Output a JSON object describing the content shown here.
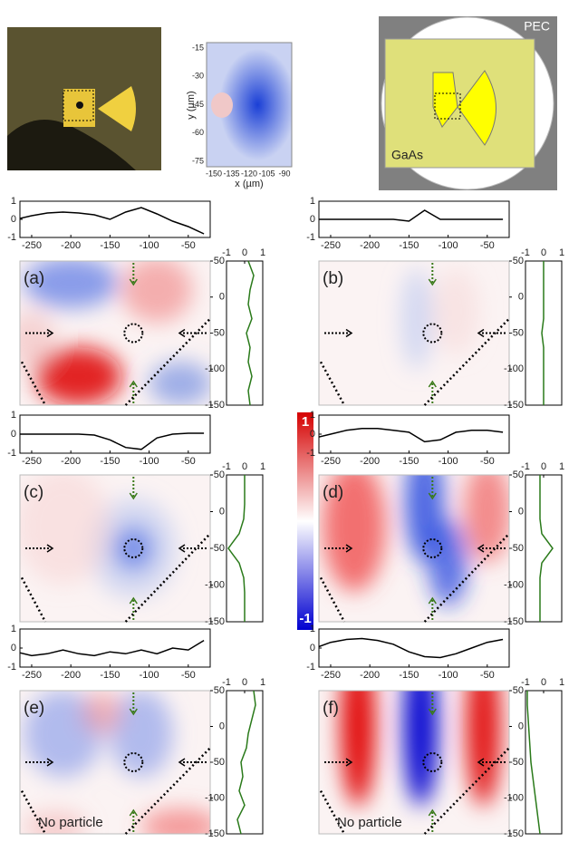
{
  "inset": {
    "ylabel": "y (µm)",
    "xlabel": "x (µm)",
    "yticks": [
      -15,
      -30,
      -45,
      -60,
      -75
    ],
    "xticks": [
      -150,
      -135,
      -120,
      -105,
      -90
    ]
  },
  "schematic": {
    "pec": "PEC",
    "gaas": "GaAs"
  },
  "colorbar": {
    "ticks": [
      1,
      -1
    ]
  },
  "axes": {
    "xlim": [
      -265,
      -22
    ],
    "ylim": [
      -150,
      50
    ],
    "xticks": [
      -250,
      -200,
      -150,
      -100,
      -50
    ],
    "yticks": [
      50,
      0,
      -50,
      -100,
      -150
    ],
    "profile_ylim": [
      -1,
      1
    ],
    "profile_ticks": [
      1,
      0,
      -1
    ],
    "side_xlim": [
      -1,
      1
    ],
    "side_ticks": [
      -1,
      0,
      1
    ],
    "profile_x": [
      -270,
      -250,
      -230,
      -210,
      -190,
      -170,
      -150,
      -130,
      -110,
      -90,
      -70,
      -50,
      -30
    ],
    "side_y": [
      50,
      30,
      10,
      -10,
      -30,
      -50,
      -70,
      -90,
      -110,
      -130,
      -150
    ]
  },
  "panels": [
    {
      "label": "(a)",
      "profile": [
        0,
        0.2,
        0.35,
        0.4,
        0.35,
        0.25,
        0,
        0.4,
        0.65,
        0.3,
        -0.1,
        -0.4,
        -0.8
      ],
      "side": [
        0.2,
        0.5,
        0.3,
        0.2,
        0.4,
        0.1,
        0.3,
        0.2,
        0.4,
        0.2,
        0.3
      ]
    },
    {
      "label": "(b)",
      "profile": [
        0,
        0,
        0,
        0,
        0,
        0,
        -0.1,
        0.5,
        0,
        0,
        0,
        0,
        0
      ],
      "side": [
        0,
        0,
        0,
        0,
        0,
        -0.1,
        0,
        0,
        0,
        0,
        0
      ]
    },
    {
      "label": "(c)",
      "profile": [
        0,
        0,
        0,
        0,
        0,
        -0.05,
        -0.3,
        -0.7,
        -0.8,
        -0.2,
        0,
        0.05,
        0.05
      ],
      "side": [
        0,
        0,
        0,
        -0.05,
        -0.3,
        -0.9,
        -0.3,
        -0.05,
        0,
        0,
        0
      ]
    },
    {
      "label": "(d)",
      "profile": [
        -0.2,
        0,
        0.2,
        0.3,
        0.3,
        0.2,
        0.1,
        -0.4,
        -0.3,
        0.1,
        0.2,
        0.2,
        0.1
      ],
      "side": [
        -0.2,
        -0.2,
        -0.2,
        -0.2,
        -0.1,
        0.5,
        -0.1,
        -0.2,
        -0.2,
        -0.2,
        -0.2
      ]
    },
    {
      "label": "(e)",
      "note": "No particle",
      "profile": [
        -0.2,
        -0.4,
        -0.3,
        -0.1,
        -0.3,
        -0.4,
        -0.2,
        -0.3,
        -0.1,
        -0.3,
        0,
        -0.1,
        0.4
      ],
      "side": [
        0.5,
        0.6,
        0.4,
        0.2,
        0.1,
        -0.2,
        -0.1,
        -0.3,
        0,
        -0.4,
        -0.2
      ]
    },
    {
      "label": "(f)",
      "note": "No particle",
      "profile": [
        0,
        0.3,
        0.45,
        0.5,
        0.4,
        0.2,
        -0.2,
        -0.45,
        -0.5,
        -0.3,
        0,
        0.3,
        0.45
      ],
      "side": [
        -0.9,
        -0.9,
        -0.85,
        -0.8,
        -0.75,
        -0.7,
        -0.6,
        -0.5,
        -0.4,
        -0.3,
        -0.2
      ]
    }
  ]
}
